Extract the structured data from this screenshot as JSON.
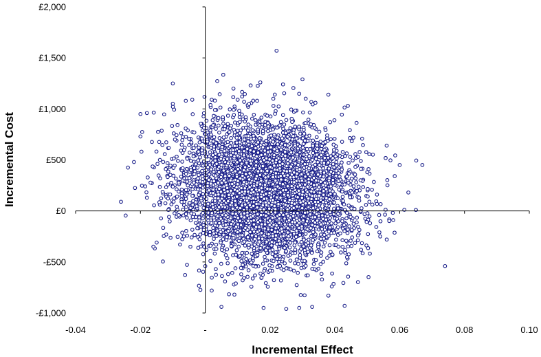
{
  "chart_data": {
    "type": "scatter",
    "title": "",
    "xlabel": "Incremental Effect",
    "ylabel": "Incremental Cost",
    "xlim": [
      -0.04,
      0.1
    ],
    "ylim": [
      -1000,
      2000
    ],
    "xticks": [
      {
        "value": -0.04,
        "label": "-0.04"
      },
      {
        "value": -0.02,
        "label": "-0.02"
      },
      {
        "value": 0,
        "label": "-"
      },
      {
        "value": 0.02,
        "label": "0.02"
      },
      {
        "value": 0.04,
        "label": "0.04"
      },
      {
        "value": 0.06,
        "label": "0.06"
      },
      {
        "value": 0.08,
        "label": "0.08"
      },
      {
        "value": 0.1,
        "label": "0.10"
      }
    ],
    "yticks": [
      {
        "value": 2000,
        "label": "£2,000"
      },
      {
        "value": 1500,
        "label": "£1,500"
      },
      {
        "value": 1000,
        "label": "£1,000"
      },
      {
        "value": 500,
        "label": "£500"
      },
      {
        "value": 0,
        "label": "£0"
      },
      {
        "value": -500,
        "label": "-£500"
      },
      {
        "value": -1000,
        "label": "-£1,000"
      }
    ],
    "grid": false,
    "legend": "none",
    "marker": {
      "shape": "circle",
      "fill": "#ffffff",
      "edge_color": "#1a1f8a"
    },
    "axis_color": "#000000",
    "cloud_summary": {
      "center": [
        0.019,
        200
      ],
      "sd": [
        0.013,
        330
      ],
      "x_extent": [
        -0.026,
        0.074
      ],
      "y_extent": [
        -970,
        1570
      ]
    },
    "series": [
      {
        "x": [
          0.022,
          0.03,
          0.017,
          0.024,
          0.014,
          0.06,
          0.048,
          0.067,
          0.074,
          -0.026,
          -0.018,
          -0.02,
          -0.02,
          -0.014,
          -0.01,
          -0.01,
          -0.004,
          0.002,
          -0.006,
          0.012,
          0.01,
          0.031,
          0.021,
          0.016,
          0.038,
          0.044,
          0.034,
          -0.015,
          -0.016,
          -0.018,
          -0.022,
          0.0,
          0.05,
          0.053,
          0.065,
          0.058,
          0.054,
          0.056,
          0.038,
          0.002,
          0.005,
          0.009,
          0.043,
          0.018,
          0.025,
          0.029,
          0.033
        ],
        "y": [
          1570,
          1290,
          1260,
          1240,
          1230,
          450,
          490,
          450,
          -540,
          90,
          960,
          950,
          730,
          500,
          1250,
          1050,
          1090,
          1090,
          1080,
          1070,
          1090,
          1100,
          1100,
          1080,
          1140,
          1030,
          1060,
          -310,
          -350,
          130,
          480,
          -540,
          380,
          160,
          10,
          -90,
          -250,
          -280,
          -830,
          -780,
          -940,
          -820,
          -930,
          -950,
          -960,
          -950,
          -940
        ]
      }
    ]
  }
}
